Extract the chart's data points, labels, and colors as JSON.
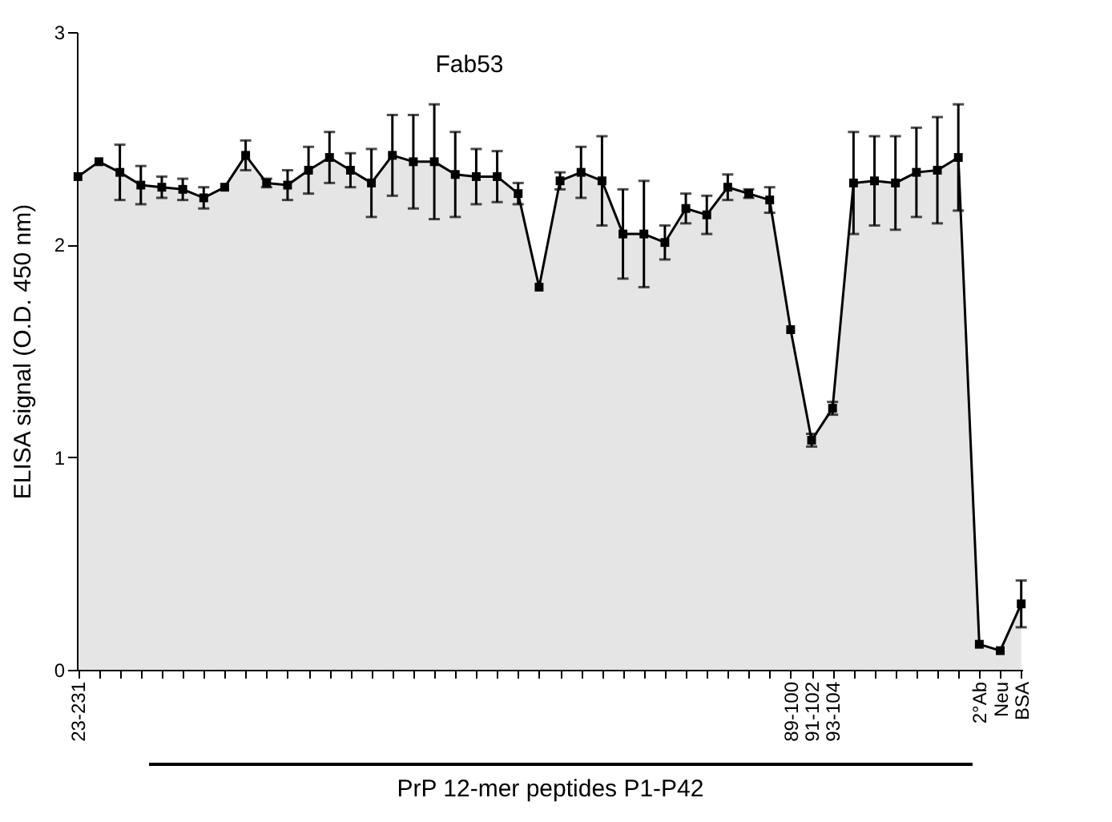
{
  "chart_data": {
    "type": "area",
    "title": "Fab53",
    "xlabel": "PrP 12-mer peptides P1-P42",
    "ylabel": "ELISA signal (O.D. 450 nm)",
    "categories": [
      "23-231",
      null,
      null,
      null,
      null,
      null,
      null,
      null,
      null,
      null,
      null,
      null,
      null,
      null,
      null,
      null,
      null,
      null,
      null,
      null,
      null,
      null,
      null,
      null,
      null,
      null,
      null,
      null,
      null,
      null,
      null,
      null,
      null,
      null,
      "89-100",
      "91-102",
      "93-104",
      null,
      null,
      null,
      null,
      null,
      null,
      "2°Ab",
      "Neu",
      "BSA"
    ],
    "series": [
      {
        "color": "#000000",
        "values": [
          2.32,
          2.39,
          2.34,
          2.28,
          2.27,
          2.26,
          2.22,
          2.27,
          2.42,
          2.29,
          2.28,
          2.35,
          2.41,
          2.35,
          2.29,
          2.42,
          2.39,
          2.39,
          2.33,
          2.32,
          2.32,
          2.24,
          1.8,
          2.3,
          2.34,
          2.3,
          2.05,
          2.05,
          2.01,
          2.17,
          2.14,
          2.27,
          2.24,
          2.21,
          1.6,
          1.08,
          1.23,
          2.29,
          2.3,
          2.29,
          2.34,
          2.35,
          2.41,
          0.12,
          0.09,
          0.31
        ],
        "errors": [
          null,
          null,
          0.13,
          0.09,
          0.05,
          0.05,
          0.05,
          null,
          0.07,
          0.02,
          0.07,
          0.11,
          0.12,
          0.08,
          0.16,
          0.19,
          0.22,
          0.27,
          0.2,
          0.13,
          0.12,
          0.05,
          null,
          0.04,
          0.12,
          0.21,
          0.21,
          0.25,
          0.08,
          0.07,
          0.09,
          0.06,
          0.02,
          0.06,
          null,
          0.03,
          0.03,
          0.24,
          0.21,
          0.22,
          0.21,
          0.25,
          0.25,
          null,
          null,
          0.11
        ]
      }
    ],
    "ylim": [
      0,
      3
    ],
    "yticks": [
      0,
      1,
      2,
      3
    ],
    "grid": false,
    "marker": "square",
    "line_style": "solid"
  }
}
